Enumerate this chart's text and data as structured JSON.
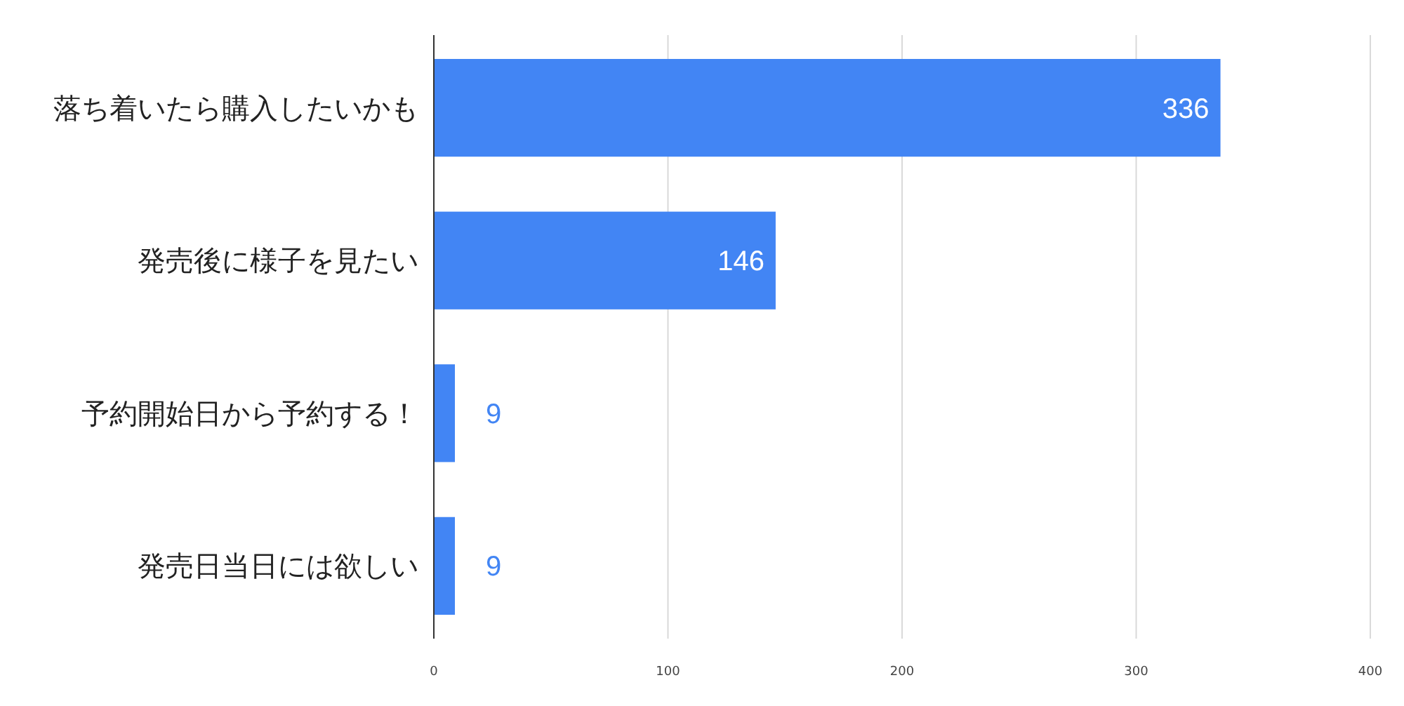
{
  "chart_data": {
    "type": "bar",
    "orientation": "horizontal",
    "categories": [
      "落ち着いたら購入したいかも",
      "発売後に様子を見たい",
      "予約開始日から予約する！",
      "発売日当日には欲しい"
    ],
    "values": [
      336,
      146,
      9,
      9
    ],
    "color": "#4285f4",
    "xlim": [
      0,
      400
    ],
    "xticks": [
      0,
      100,
      200,
      300,
      400
    ],
    "grid": "x",
    "data_labels": true
  }
}
